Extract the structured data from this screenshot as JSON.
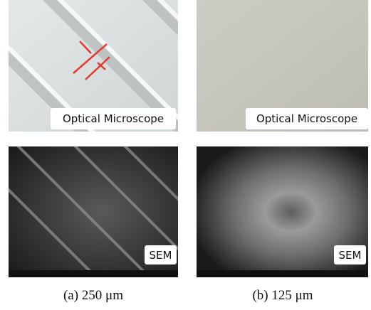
{
  "panels": [
    {
      "optical_label": "Optical Microscope",
      "sem_label": "SEM",
      "caption": "(a) 250 μm"
    },
    {
      "optical_label": "Optical Microscope",
      "sem_label": "SEM",
      "caption": "(b) 125 μm"
    }
  ]
}
